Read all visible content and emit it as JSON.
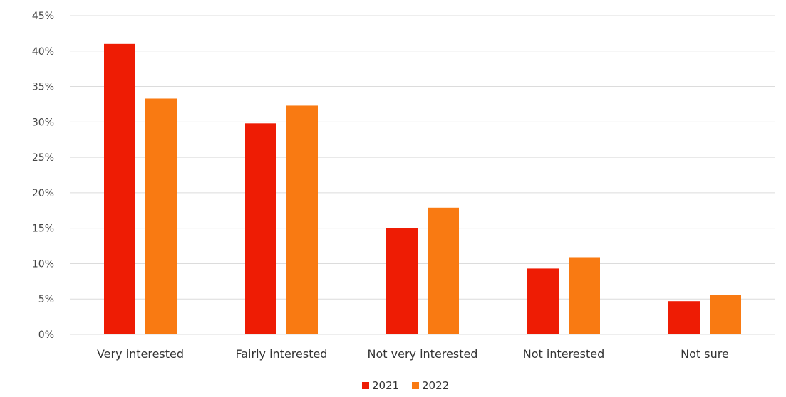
{
  "chart_data": {
    "type": "bar",
    "categories": [
      "Very interested",
      "Fairly interested",
      "Not very interested",
      "Not interested",
      "Not sure"
    ],
    "series": [
      {
        "name": "2021",
        "values": [
          41,
          29.8,
          15,
          9.3,
          4.7
        ],
        "color": "#ee1c04"
      },
      {
        "name": "2022",
        "values": [
          33.3,
          32.3,
          17.9,
          10.9,
          5.6
        ],
        "color": "#f97a12"
      }
    ],
    "y_tick_labels": [
      "0%",
      "5%",
      "10%",
      "15%",
      "20%",
      "25%",
      "30%",
      "35%",
      "40%",
      "45%"
    ],
    "ylim": [
      0,
      45
    ],
    "grid": true,
    "legend_position": "bottom-center"
  }
}
